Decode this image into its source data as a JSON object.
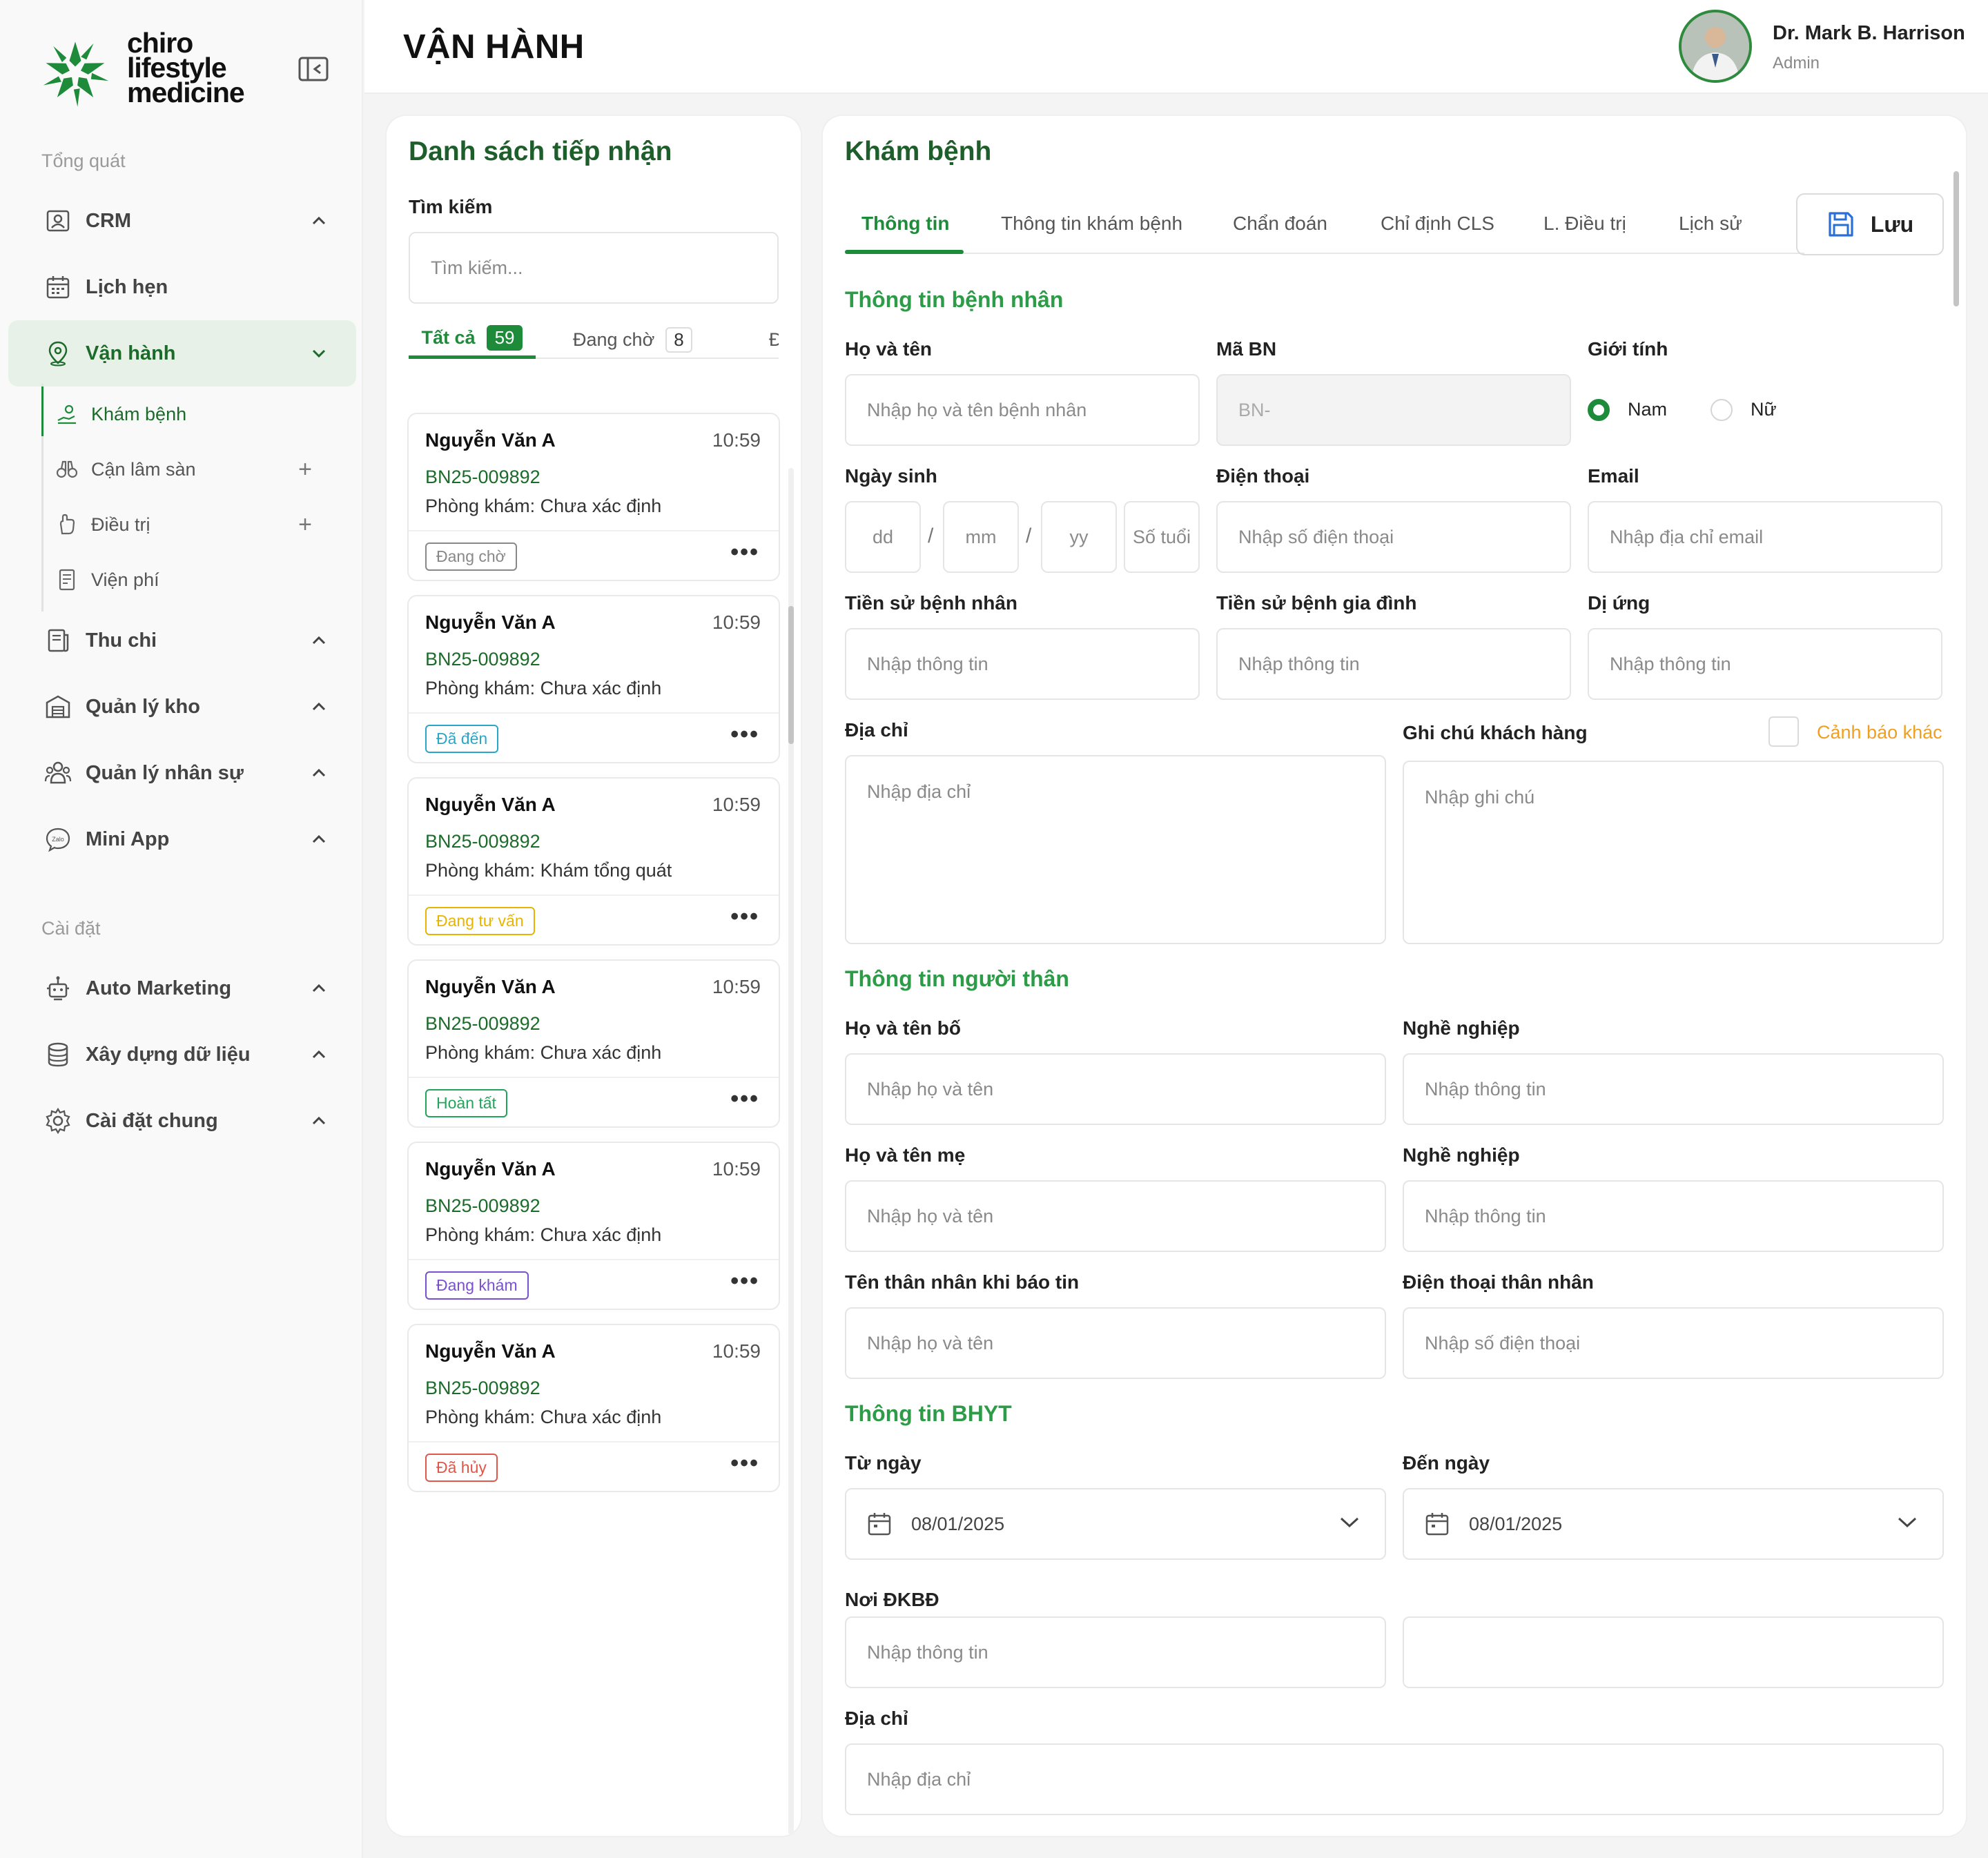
{
  "brand": {
    "logo_lines": [
      "chiro",
      "lifestyle",
      "medicine"
    ],
    "accent": "#1d8b3a"
  },
  "sidebar": {
    "section_general": "Tổng quát",
    "section_settings": "Cài đặt",
    "items": [
      {
        "label": "CRM",
        "icon": "crm-icon"
      },
      {
        "label": "Lịch hẹn",
        "icon": "calendar-icon"
      },
      {
        "label": "Vận hành",
        "icon": "location-icon"
      },
      {
        "label": "Thu chi",
        "icon": "receipt-icon"
      },
      {
        "label": "Quản lý kho",
        "icon": "warehouse-icon"
      },
      {
        "label": "Quản lý nhân sự",
        "icon": "staff-icon"
      },
      {
        "label": "Mini App",
        "icon": "zalo-icon"
      },
      {
        "label": "Auto Marketing",
        "icon": "marketing-icon"
      },
      {
        "label": "Xây dựng dữ liệu",
        "icon": "database-icon"
      },
      {
        "label": "Cài đặt chung",
        "icon": "settings-icon"
      }
    ],
    "subitems": [
      {
        "label": "Khám bệnh"
      },
      {
        "label": "Cận lâm sàn"
      },
      {
        "label": "Điều trị"
      },
      {
        "label": "Viện phí"
      }
    ]
  },
  "header": {
    "title": "VẬN HÀNH",
    "user_name": "Dr. Mark B. Harrison",
    "user_role": "Admin"
  },
  "list": {
    "title": "Danh sách tiếp nhận",
    "search_label": "Tìm kiếm",
    "search_placeholder": "Tìm kiếm...",
    "tabs": [
      {
        "label": "Tất cả",
        "count": "59"
      },
      {
        "label": "Đang chờ",
        "count": "8"
      },
      {
        "label": "Đ"
      }
    ],
    "room_label": "Phòng khám:",
    "items": [
      {
        "name": "Nguyễn Văn A",
        "time": "10:59",
        "code": "BN25-009892",
        "room": "Chưa xác định",
        "status": "Đang chờ",
        "status_color": "#888888"
      },
      {
        "name": "Nguyễn Văn A",
        "time": "10:59",
        "code": "BN25-009892",
        "room": "Chưa xác định",
        "status": "Đã đến",
        "status_color": "#2aa6c8"
      },
      {
        "name": "Nguyễn Văn A",
        "time": "10:59",
        "code": "BN25-009892",
        "room": "Khám tổng quát",
        "status": "Đang tư vấn",
        "status_color": "#e8b400"
      },
      {
        "name": "Nguyễn Văn A",
        "time": "10:59",
        "code": "BN25-009892",
        "room": "Chưa xác định",
        "status": "Hoàn tất",
        "status_color": "#22a55a"
      },
      {
        "name": "Nguyễn Văn A",
        "time": "10:59",
        "code": "BN25-009892",
        "room": "Chưa xác định",
        "status": "Đang khám",
        "status_color": "#7a4fd1"
      },
      {
        "name": "Nguyễn Văn A",
        "time": "10:59",
        "code": "BN25-009892",
        "room": "Chưa xác định",
        "status": "Đã hủy",
        "status_color": "#e0574a"
      }
    ]
  },
  "form": {
    "title": "Khám bệnh",
    "tabs": [
      "Thông tin",
      "Thông tin khám bệnh",
      "Chẩn đoán",
      "Chỉ định CLS",
      "L. Điều trị",
      "Lịch sử"
    ],
    "save_label": "Lưu",
    "patient": {
      "section": "Thông tin bệnh nhân",
      "name_label": "Họ và tên",
      "name_ph": "Nhập họ và tên bệnh nhân",
      "code_label": "Mã BN",
      "code_value": "BN-",
      "gender_label": "Giới tính",
      "gender_male": "Nam",
      "gender_female": "Nữ",
      "dob_label": "Ngày sinh",
      "dd": "dd",
      "mm": "mm",
      "yy": "yy",
      "age": "Số tuổi",
      "slash": "/",
      "phone_label": "Điện thoại",
      "phone_ph": "Nhập số điện thoại",
      "email_label": "Email",
      "email_ph": "Nhập địa chỉ email",
      "history_label": "Tiền sử bệnh nhân",
      "family_label": "Tiền sử bệnh gia đình",
      "allergy_label": "Dị ứng",
      "info_ph": "Nhập thông tin",
      "address_label": "Địa chỉ",
      "address_ph": "Nhập địa chỉ",
      "note_label": "Ghi chú khách hàng",
      "note_ph": "Nhập ghi chú",
      "warning_label": "Cảnh báo khác"
    },
    "relatives": {
      "section": "Thông tin người thân",
      "father_label": "Họ và tên bố",
      "mother_label": "Họ và tên mẹ",
      "job_label": "Nghề nghiệp",
      "contact_label": "Tên thân nhân khi báo tin",
      "contact_phone_label": "Điện thoại thân nhân",
      "name_ph": "Nhập họ và tên",
      "info_ph": "Nhập thông tin",
      "phone_ph": "Nhập số điện thoại"
    },
    "insurance": {
      "section": "Thông tin BHYT",
      "from_label": "Từ ngày",
      "to_label": "Đến ngày",
      "from_value": "08/01/2025",
      "to_value": "08/01/2025",
      "place_label": "Nơi ĐKBĐ",
      "place_ph": "Nhập thông tin",
      "address_label": "Địa chỉ",
      "address_ph": "Nhập địa chỉ"
    }
  }
}
